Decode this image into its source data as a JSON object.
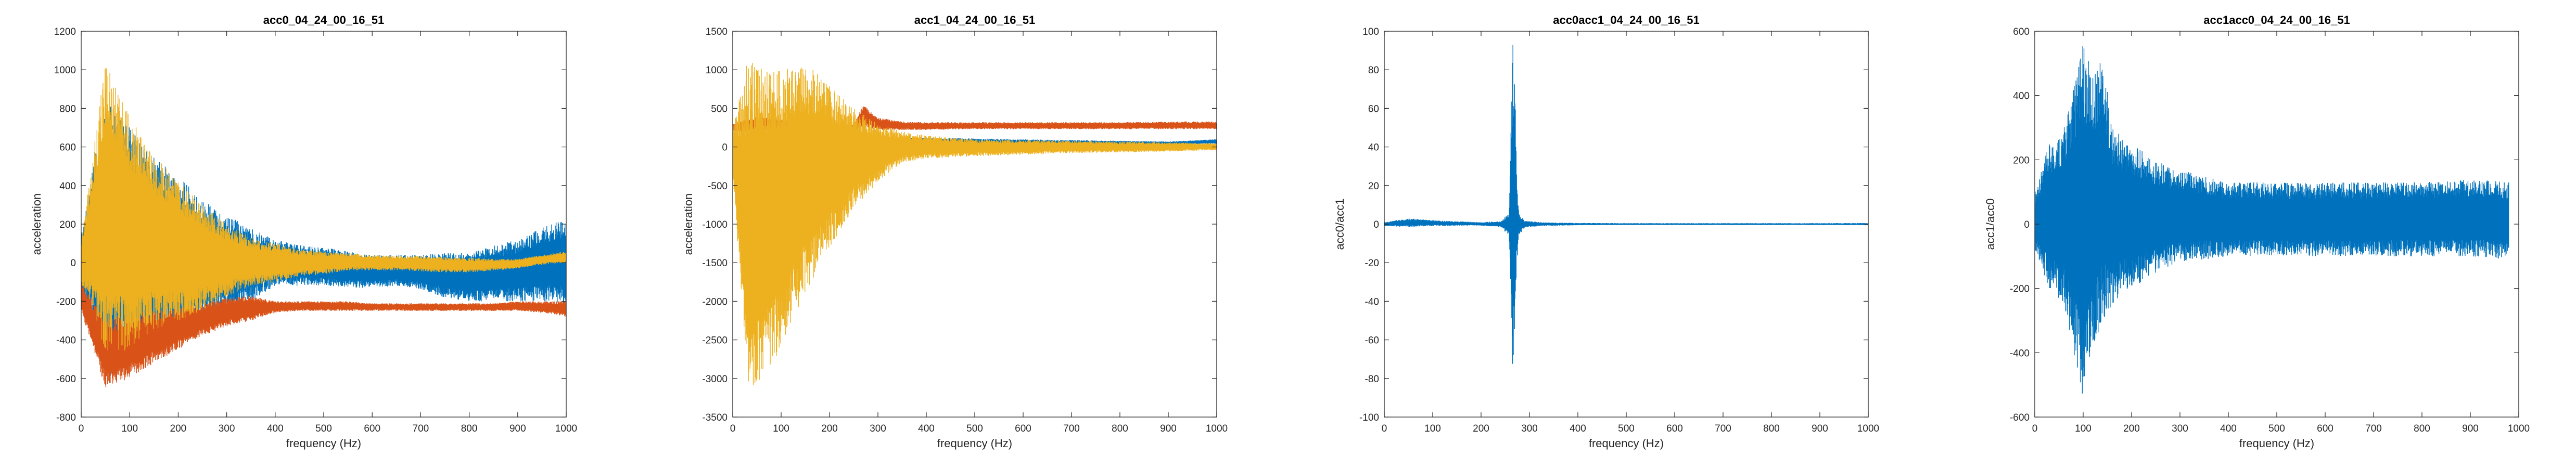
{
  "chart_data": [
    {
      "type": "line",
      "title": "acc0_04_24_00_16_51",
      "xlabel": "frequency (Hz)",
      "ylabel": "acceleration",
      "xlim": [
        0,
        1000
      ],
      "ylim": [
        -800,
        1200
      ],
      "xticks": [
        0,
        100,
        200,
        300,
        400,
        500,
        600,
        700,
        800,
        900,
        1000
      ],
      "yticks": [
        -800,
        -600,
        -400,
        -200,
        0,
        200,
        400,
        600,
        800,
        1000,
        1200
      ],
      "grid": false,
      "series": [
        {
          "color": "#0072BD",
          "style": "band",
          "x": [
            0,
            50,
            100,
            150,
            200,
            250,
            300,
            350,
            400,
            450,
            500,
            550,
            600,
            650,
            700,
            750,
            800,
            850,
            900,
            950,
            1000
          ],
          "upper": [
            150,
            850,
            700,
            550,
            450,
            330,
            250,
            180,
            120,
            90,
            80,
            60,
            40,
            40,
            40,
            50,
            50,
            90,
            120,
            180,
            230
          ],
          "lower": [
            -150,
            -600,
            -550,
            -450,
            -380,
            -300,
            -260,
            -200,
            -120,
            -120,
            -120,
            -130,
            -130,
            -120,
            -140,
            -180,
            -200,
            -200,
            -200,
            -200,
            -220
          ]
        },
        {
          "color": "#D95319",
          "style": "band",
          "x": [
            0,
            50,
            100,
            150,
            200,
            250,
            300,
            350,
            400,
            450,
            500,
            550,
            600,
            650,
            700,
            750,
            800,
            850,
            900,
            950,
            1000
          ],
          "upper": [
            -100,
            -300,
            -250,
            -250,
            -230,
            -210,
            -180,
            -170,
            -200,
            -200,
            -200,
            -200,
            -210,
            -210,
            -210,
            -210,
            -210,
            -210,
            -200,
            -200,
            -200
          ],
          "lower": [
            -250,
            -650,
            -600,
            -520,
            -450,
            -380,
            -330,
            -300,
            -260,
            -250,
            -250,
            -250,
            -250,
            -250,
            -250,
            -250,
            -250,
            -250,
            -250,
            -260,
            -280
          ]
        },
        {
          "color": "#EDB120",
          "style": "band",
          "x": [
            0,
            50,
            100,
            150,
            200,
            250,
            300,
            350,
            400,
            450,
            500,
            550,
            600,
            650,
            700,
            750,
            800,
            850,
            900,
            950,
            1000
          ],
          "upper": [
            100,
            1050,
            760,
            560,
            420,
            300,
            200,
            130,
            100,
            70,
            60,
            50,
            40,
            35,
            35,
            30,
            25,
            20,
            20,
            40,
            60
          ],
          "lower": [
            -100,
            -500,
            -450,
            -350,
            -300,
            -250,
            -180,
            -120,
            -100,
            -70,
            -60,
            -40,
            -40,
            -40,
            -45,
            -50,
            -50,
            -40,
            -30,
            -10,
            0
          ]
        }
      ]
    },
    {
      "type": "line",
      "title": "acc1_04_24_00_16_51",
      "xlabel": "frequency (Hz)",
      "ylabel": "acceleration",
      "xlim": [
        0,
        1000
      ],
      "ylim": [
        -3500,
        1500
      ],
      "xticks": [
        0,
        100,
        200,
        300,
        400,
        500,
        600,
        700,
        800,
        900,
        1000
      ],
      "yticks": [
        -3500,
        -3000,
        -2500,
        -2000,
        -1500,
        -1000,
        -500,
        0,
        500,
        1000,
        1500
      ],
      "grid": false,
      "series": [
        {
          "color": "#D95319",
          "style": "band",
          "x": [
            0,
            50,
            100,
            150,
            200,
            250,
            270,
            300,
            350,
            400,
            500,
            600,
            700,
            800,
            900,
            1000
          ],
          "upper": [
            300,
            400,
            350,
            300,
            300,
            300,
            550,
            380,
            330,
            320,
            320,
            320,
            320,
            320,
            330,
            330
          ],
          "lower": [
            200,
            200,
            200,
            200,
            200,
            200,
            250,
            220,
            220,
            220,
            230,
            230,
            230,
            230,
            230,
            230
          ]
        },
        {
          "color": "#0072BD",
          "style": "band",
          "x": [
            0,
            100,
            200,
            300,
            400,
            500,
            600,
            700,
            800,
            900,
            1000
          ],
          "upper": [
            80,
            100,
            110,
            120,
            120,
            110,
            100,
            90,
            80,
            70,
            100
          ],
          "lower": [
            -50,
            -40,
            -30,
            -10,
            0,
            0,
            0,
            10,
            20,
            30,
            40
          ]
        },
        {
          "color": "#EDB120",
          "style": "band",
          "x": [
            0,
            30,
            60,
            100,
            150,
            200,
            250,
            300,
            350,
            400,
            500,
            600,
            700,
            800,
            900,
            1000
          ],
          "upper": [
            200,
            1150,
            1050,
            1000,
            1100,
            800,
            500,
            300,
            200,
            150,
            100,
            90,
            80,
            70,
            60,
            50
          ],
          "lower": [
            -300,
            -3300,
            -3100,
            -2600,
            -1900,
            -1300,
            -800,
            -450,
            -200,
            -150,
            -120,
            -100,
            -80,
            -70,
            -60,
            -40
          ]
        }
      ]
    },
    {
      "type": "line",
      "title": "acc0acc1_04_24_00_16_51",
      "xlabel": "frequency (Hz)",
      "ylabel": "acc0/acc1",
      "xlim": [
        0,
        1000
      ],
      "ylim": [
        -100,
        100
      ],
      "xticks": [
        0,
        100,
        200,
        300,
        400,
        500,
        600,
        700,
        800,
        900,
        1000
      ],
      "yticks": [
        -100,
        -80,
        -60,
        -40,
        -20,
        0,
        20,
        40,
        60,
        80,
        100
      ],
      "grid": false,
      "series": [
        {
          "color": "#0072BD",
          "style": "band",
          "x": [
            0,
            50,
            100,
            150,
            200,
            240,
            258,
            262,
            266,
            270,
            274,
            278,
            290,
            320,
            400,
            500,
            600,
            700,
            800,
            900,
            1000
          ],
          "upper": [
            1,
            3,
            2,
            1.5,
            1,
            1.5,
            6,
            60,
            98,
            80,
            20,
            6,
            2,
            1,
            0.6,
            0.5,
            0.5,
            0.5,
            0.5,
            0.5,
            0.6
          ],
          "lower": [
            -1,
            -1.5,
            -1,
            -0.8,
            -0.8,
            -1.5,
            -6,
            -48,
            -97,
            -50,
            -20,
            -6,
            -2,
            -1,
            -0.6,
            -0.5,
            -0.5,
            -0.5,
            -0.5,
            -0.5,
            -0.6
          ]
        }
      ]
    },
    {
      "type": "line",
      "title": "acc1acc0_04_24_00_16_51",
      "xlabel": "frequency (Hz)",
      "ylabel": "acc1/acc0",
      "xlim": [
        0,
        1000
      ],
      "ylim": [
        -600,
        600
      ],
      "xticks": [
        0,
        100,
        200,
        300,
        400,
        500,
        600,
        700,
        800,
        900,
        1000
      ],
      "yticks": [
        -600,
        -400,
        -200,
        0,
        200,
        400,
        600
      ],
      "grid": false,
      "series": [
        {
          "color": "#0072BD",
          "style": "band",
          "x": [
            0,
            30,
            60,
            80,
            100,
            120,
            140,
            160,
            200,
            250,
            300,
            350,
            400,
            500,
            600,
            700,
            800,
            900,
            980
          ],
          "upper": [
            100,
            250,
            300,
            430,
            560,
            470,
            530,
            300,
            250,
            200,
            170,
            150,
            130,
            130,
            130,
            130,
            130,
            140,
            130
          ],
          "lower": [
            -80,
            -200,
            -250,
            -400,
            -540,
            -400,
            -300,
            -250,
            -200,
            -150,
            -120,
            -110,
            -100,
            -100,
            -100,
            -100,
            -100,
            -100,
            -110
          ]
        }
      ]
    }
  ]
}
